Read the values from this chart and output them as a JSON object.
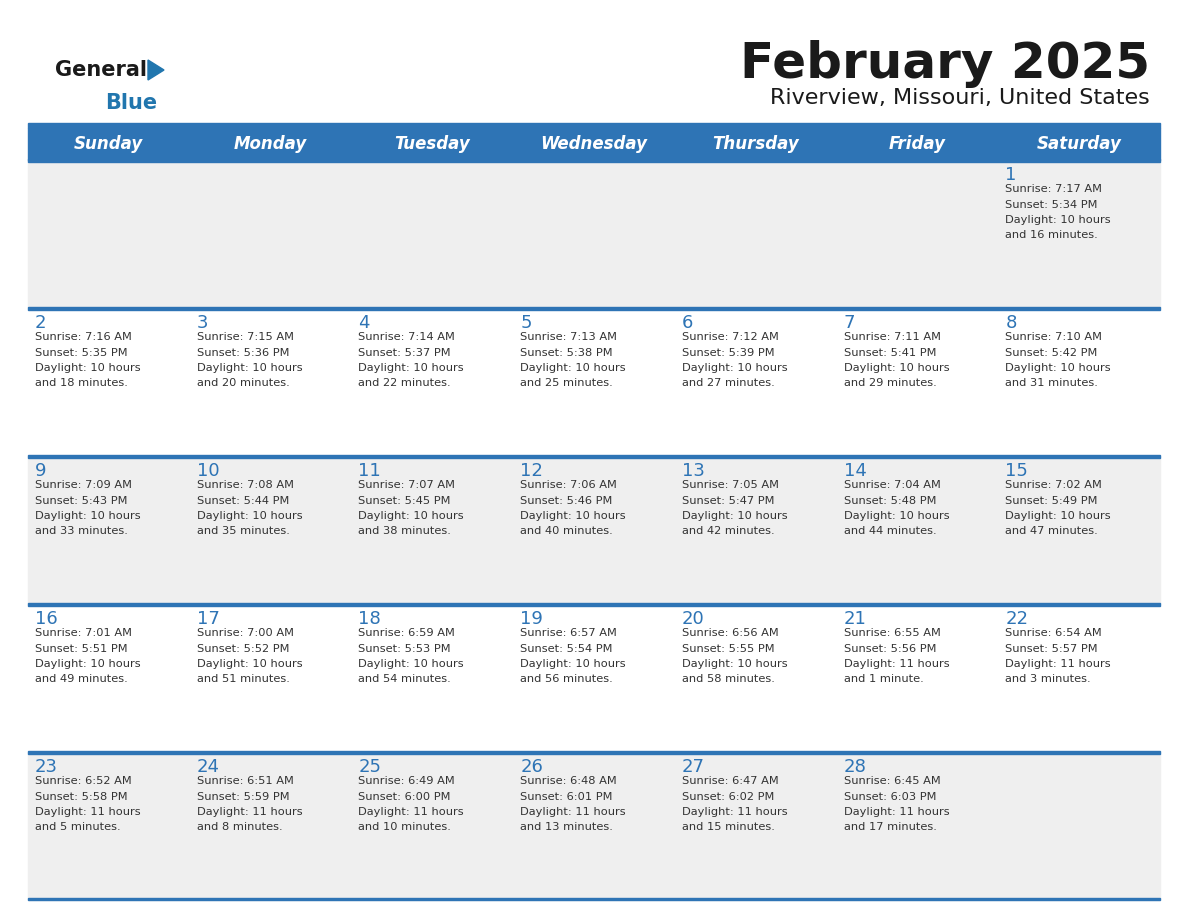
{
  "title": "February 2025",
  "subtitle": "Riverview, Missouri, United States",
  "header_bg": "#2E74B5",
  "header_text_color": "#FFFFFF",
  "day_names": [
    "Sunday",
    "Monday",
    "Tuesday",
    "Wednesday",
    "Thursday",
    "Friday",
    "Saturday"
  ],
  "row_colors": [
    "#EFEFEF",
    "#FFFFFF",
    "#EFEFEF",
    "#FFFFFF",
    "#EFEFEF"
  ],
  "cell_border_color": "#2E74B5",
  "title_color": "#1a1a1a",
  "subtitle_color": "#1a1a1a",
  "day_num_color": "#2E74B5",
  "cell_text_color": "#333333",
  "logo_general_color": "#1a1a1a",
  "logo_blue_color": "#2176AE",
  "logo_triangle_color": "#2176AE",
  "calendar_data": [
    [
      {
        "day": null,
        "sunrise": null,
        "sunset": null,
        "daylight": null
      },
      {
        "day": null,
        "sunrise": null,
        "sunset": null,
        "daylight": null
      },
      {
        "day": null,
        "sunrise": null,
        "sunset": null,
        "daylight": null
      },
      {
        "day": null,
        "sunrise": null,
        "sunset": null,
        "daylight": null
      },
      {
        "day": null,
        "sunrise": null,
        "sunset": null,
        "daylight": null
      },
      {
        "day": null,
        "sunrise": null,
        "sunset": null,
        "daylight": null
      },
      {
        "day": 1,
        "sunrise": "7:17 AM",
        "sunset": "5:34 PM",
        "daylight": "10 hours\nand 16 minutes."
      }
    ],
    [
      {
        "day": 2,
        "sunrise": "7:16 AM",
        "sunset": "5:35 PM",
        "daylight": "10 hours\nand 18 minutes."
      },
      {
        "day": 3,
        "sunrise": "7:15 AM",
        "sunset": "5:36 PM",
        "daylight": "10 hours\nand 20 minutes."
      },
      {
        "day": 4,
        "sunrise": "7:14 AM",
        "sunset": "5:37 PM",
        "daylight": "10 hours\nand 22 minutes."
      },
      {
        "day": 5,
        "sunrise": "7:13 AM",
        "sunset": "5:38 PM",
        "daylight": "10 hours\nand 25 minutes."
      },
      {
        "day": 6,
        "sunrise": "7:12 AM",
        "sunset": "5:39 PM",
        "daylight": "10 hours\nand 27 minutes."
      },
      {
        "day": 7,
        "sunrise": "7:11 AM",
        "sunset": "5:41 PM",
        "daylight": "10 hours\nand 29 minutes."
      },
      {
        "day": 8,
        "sunrise": "7:10 AM",
        "sunset": "5:42 PM",
        "daylight": "10 hours\nand 31 minutes."
      }
    ],
    [
      {
        "day": 9,
        "sunrise": "7:09 AM",
        "sunset": "5:43 PM",
        "daylight": "10 hours\nand 33 minutes."
      },
      {
        "day": 10,
        "sunrise": "7:08 AM",
        "sunset": "5:44 PM",
        "daylight": "10 hours\nand 35 minutes."
      },
      {
        "day": 11,
        "sunrise": "7:07 AM",
        "sunset": "5:45 PM",
        "daylight": "10 hours\nand 38 minutes."
      },
      {
        "day": 12,
        "sunrise": "7:06 AM",
        "sunset": "5:46 PM",
        "daylight": "10 hours\nand 40 minutes."
      },
      {
        "day": 13,
        "sunrise": "7:05 AM",
        "sunset": "5:47 PM",
        "daylight": "10 hours\nand 42 minutes."
      },
      {
        "day": 14,
        "sunrise": "7:04 AM",
        "sunset": "5:48 PM",
        "daylight": "10 hours\nand 44 minutes."
      },
      {
        "day": 15,
        "sunrise": "7:02 AM",
        "sunset": "5:49 PM",
        "daylight": "10 hours\nand 47 minutes."
      }
    ],
    [
      {
        "day": 16,
        "sunrise": "7:01 AM",
        "sunset": "5:51 PM",
        "daylight": "10 hours\nand 49 minutes."
      },
      {
        "day": 17,
        "sunrise": "7:00 AM",
        "sunset": "5:52 PM",
        "daylight": "10 hours\nand 51 minutes."
      },
      {
        "day": 18,
        "sunrise": "6:59 AM",
        "sunset": "5:53 PM",
        "daylight": "10 hours\nand 54 minutes."
      },
      {
        "day": 19,
        "sunrise": "6:57 AM",
        "sunset": "5:54 PM",
        "daylight": "10 hours\nand 56 minutes."
      },
      {
        "day": 20,
        "sunrise": "6:56 AM",
        "sunset": "5:55 PM",
        "daylight": "10 hours\nand 58 minutes."
      },
      {
        "day": 21,
        "sunrise": "6:55 AM",
        "sunset": "5:56 PM",
        "daylight": "11 hours\nand 1 minute."
      },
      {
        "day": 22,
        "sunrise": "6:54 AM",
        "sunset": "5:57 PM",
        "daylight": "11 hours\nand 3 minutes."
      }
    ],
    [
      {
        "day": 23,
        "sunrise": "6:52 AM",
        "sunset": "5:58 PM",
        "daylight": "11 hours\nand 5 minutes."
      },
      {
        "day": 24,
        "sunrise": "6:51 AM",
        "sunset": "5:59 PM",
        "daylight": "11 hours\nand 8 minutes."
      },
      {
        "day": 25,
        "sunrise": "6:49 AM",
        "sunset": "6:00 PM",
        "daylight": "11 hours\nand 10 minutes."
      },
      {
        "day": 26,
        "sunrise": "6:48 AM",
        "sunset": "6:01 PM",
        "daylight": "11 hours\nand 13 minutes."
      },
      {
        "day": 27,
        "sunrise": "6:47 AM",
        "sunset": "6:02 PM",
        "daylight": "11 hours\nand 15 minutes."
      },
      {
        "day": 28,
        "sunrise": "6:45 AM",
        "sunset": "6:03 PM",
        "daylight": "11 hours\nand 17 minutes."
      },
      {
        "day": null,
        "sunrise": null,
        "sunset": null,
        "daylight": null
      }
    ]
  ]
}
